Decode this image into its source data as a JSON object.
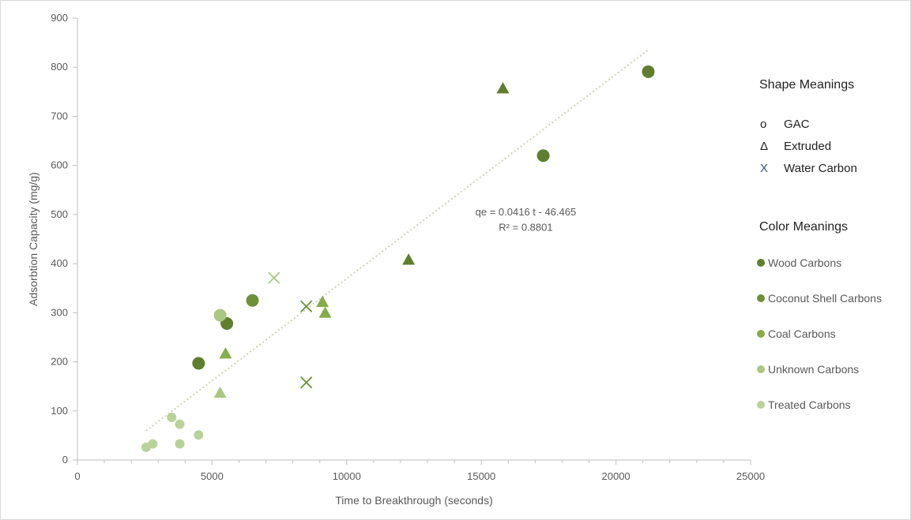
{
  "chart_data": {
    "type": "scatter",
    "xlabel": "Time to Breakthrough (seconds)",
    "ylabel": "Adsorbtion Capacity (mg/g)",
    "xlim": [
      0,
      25000
    ],
    "ylim": [
      0,
      900
    ],
    "x_ticks": [
      0,
      5000,
      10000,
      15000,
      20000,
      25000
    ],
    "y_ticks": [
      0,
      100,
      200,
      300,
      400,
      500,
      600,
      700,
      800,
      900
    ],
    "x_tick_labels": [
      "0",
      "5000",
      "10000",
      "15000",
      "20000",
      "25000"
    ],
    "y_tick_labels": [
      "0",
      "100",
      "200",
      "300",
      "400",
      "500",
      "600",
      "700",
      "800",
      "900"
    ],
    "grid": false,
    "points": [
      {
        "x": 4500,
        "y": 197,
        "shape": "circle",
        "group": "Wood Carbons"
      },
      {
        "x": 5550,
        "y": 278,
        "shape": "circle",
        "group": "Wood Carbons"
      },
      {
        "x": 17300,
        "y": 620,
        "shape": "circle",
        "group": "Wood Carbons"
      },
      {
        "x": 21200,
        "y": 791,
        "shape": "circle",
        "group": "Wood Carbons"
      },
      {
        "x": 12300,
        "y": 408,
        "shape": "triangle",
        "group": "Wood Carbons"
      },
      {
        "x": 15800,
        "y": 757,
        "shape": "triangle",
        "group": "Wood Carbons"
      },
      {
        "x": 6500,
        "y": 325,
        "shape": "circle",
        "group": "Coconut Shell Carbons"
      },
      {
        "x": 8500,
        "y": 158,
        "shape": "x",
        "group": "Coconut Shell Carbons"
      },
      {
        "x": 8500,
        "y": 313,
        "shape": "x",
        "group": "Coconut Shell Carbons"
      },
      {
        "x": 9100,
        "y": 322,
        "shape": "triangle",
        "group": "Coal Carbons"
      },
      {
        "x": 9200,
        "y": 300,
        "shape": "triangle",
        "group": "Coal Carbons"
      },
      {
        "x": 5500,
        "y": 217,
        "shape": "triangle",
        "group": "Coal Carbons"
      },
      {
        "x": 5300,
        "y": 295,
        "shape": "circle",
        "group": "Unknown Carbons"
      },
      {
        "x": 5300,
        "y": 137,
        "shape": "triangle",
        "group": "Unknown Carbons"
      },
      {
        "x": 7300,
        "y": 371,
        "shape": "x",
        "group": "Unknown Carbons"
      },
      {
        "x": 2550,
        "y": 26,
        "shape": "circle",
        "group": "Treated Carbons"
      },
      {
        "x": 2800,
        "y": 33,
        "shape": "circle",
        "group": "Treated Carbons"
      },
      {
        "x": 3500,
        "y": 87,
        "shape": "circle",
        "group": "Treated Carbons"
      },
      {
        "x": 3800,
        "y": 73,
        "shape": "circle",
        "group": "Treated Carbons"
      },
      {
        "x": 3800,
        "y": 33,
        "shape": "circle",
        "group": "Treated Carbons"
      },
      {
        "x": 4500,
        "y": 51,
        "shape": "circle",
        "group": "Treated Carbons"
      }
    ],
    "trendline": {
      "slope": 0.0416,
      "intercept": -46.465,
      "x_range": [
        2550,
        21200
      ],
      "equation_label": "qe = 0.0416 t - 46.465",
      "r2_label": "R² = 0.8801"
    },
    "colors": {
      "Wood Carbons": "#5e7f2e",
      "Coconut Shell Carbons": "#6e9138",
      "Coal Carbons": "#86ad48",
      "Unknown Carbons": "#a9c882",
      "Treated Carbons": "#b8d39a",
      "trendline": "#c9d3b8"
    },
    "legend": {
      "placement": "right",
      "shape_title": "Shape Meanings",
      "shapes": [
        {
          "symbol": "o",
          "label": "GAC"
        },
        {
          "symbol": "Δ",
          "label": "Extruded"
        },
        {
          "symbol": "X",
          "label": "Water Carbon",
          "symbol_color": "#2f4f8f"
        }
      ],
      "color_title": "Color Meanings",
      "colors": [
        {
          "label": "Wood Carbons",
          "swatch": "#5e7f2e"
        },
        {
          "label": "Coconut Shell Carbons",
          "swatch": "#6e9138"
        },
        {
          "label": "Coal Carbons",
          "swatch": "#86ad48"
        },
        {
          "label": "Unknown Carbons",
          "swatch": "#a9c882"
        },
        {
          "label": "Treated Carbons",
          "swatch": "#b8d39a"
        }
      ]
    }
  }
}
